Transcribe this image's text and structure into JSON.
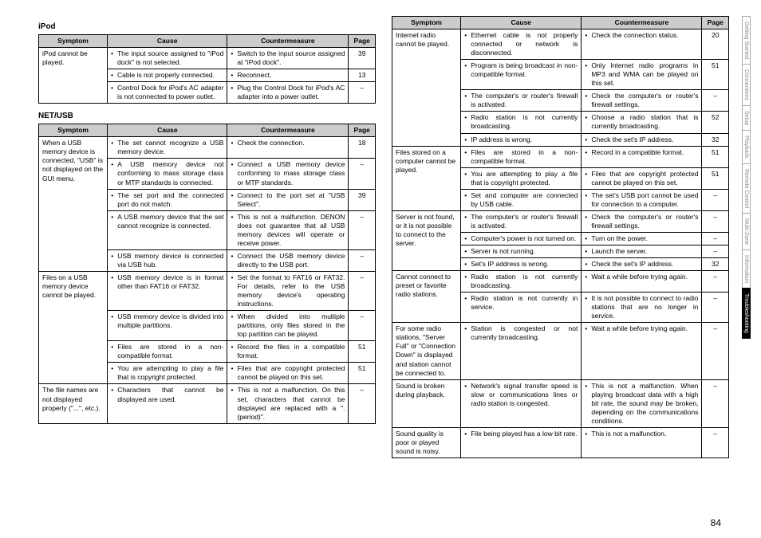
{
  "page_number": "84",
  "headers": {
    "symptom": "Symptom",
    "cause": "Cause",
    "cm": "Countermeasure",
    "page": "Page"
  },
  "nav": [
    "Getting Started",
    "Connections",
    "Setup",
    "Playback",
    "Remote Control",
    "Multi-Zone",
    "Information",
    "Troubleshooting"
  ],
  "nav_active": 7,
  "left": [
    {
      "title": "iPod",
      "rows": [
        {
          "symptom": "iPod cannot be played.",
          "items": [
            {
              "cause": "The input source assigned to \"iPod dock\" is not selected.",
              "cm": "Switch to the input source assigned at \"iPod dock\".",
              "page": "39"
            },
            {
              "cause": "Cable is not properly connected.",
              "cm": "Reconnect.",
              "page": "13"
            },
            {
              "cause": "Control Dock for iPod's AC adapter is not connected to power outlet.",
              "cm": "Plug the Control Dock for iPod's AC adapter into a power outlet.",
              "page": "–"
            }
          ]
        }
      ]
    },
    {
      "title": "NET/USB",
      "rows": [
        {
          "symptom": "When a USB memory device is connected, \"USB\" is not displayed on the GUI menu.",
          "items": [
            {
              "cause": "The set cannot recognize a USB memory device.",
              "cm": "Check the connection.",
              "page": "18"
            },
            {
              "cause": "A USB memory device not conforming to mass storage class or MTP standards is connected.",
              "cm": "Connect a USB memory device conforming to mass storage class or MTP standards.",
              "page": "–"
            },
            {
              "cause": "The set port and the connected port do not match.",
              "cm": "Connect to the port set at \"USB Select\".",
              "page": "39"
            },
            {
              "cause": "A USB memory device that the set cannot recognize is connected.",
              "cm": "This is not a malfunction. DENON does not guarantee that all USB memory devices will operate or receive power.",
              "page": "–"
            },
            {
              "cause": "USB memory device is connected via USB hub.",
              "cm": "Connect the USB memory device directly to the USB port.",
              "page": "–"
            }
          ]
        },
        {
          "symptom": "Files on a USB memory device cannot be played.",
          "items": [
            {
              "cause": "USB memory device is in format other than FAT16 or FAT32.",
              "cm": "Set the format to FAT16 or FAT32. For details, refer to the USB memory device's operating instructions.",
              "page": "–"
            },
            {
              "cause": "USB memory device is divided into multiple partitions.",
              "cm": "When divided into multiple partitions, only files stored in the top partition can be played.",
              "page": "–"
            },
            {
              "cause": "Files are stored in a non-compatible format.",
              "cm": "Record the files in a compatible format.",
              "page": "51"
            },
            {
              "cause": "You are attempting to play a file that is copyright protected.",
              "cm": "Files that are copyright protected cannot be played on this set.",
              "page": "51"
            }
          ]
        },
        {
          "symptom": "The file names are not displayed properly (\"...\", etc.).",
          "items": [
            {
              "cause": "Characters that cannot be displayed are used.",
              "cm": "This is not a malfunction. On this set, characters that cannot be displayed are replaced with a \". (period)\".",
              "page": "–"
            }
          ]
        }
      ]
    }
  ],
  "right": [
    {
      "title": "",
      "rows": [
        {
          "symptom": "Internet radio cannot be played.",
          "items": [
            {
              "cause": "Ethernet cable is not properly connected or network is disconnected.",
              "cm": "Check the connection status.",
              "page": "20"
            },
            {
              "cause": "Program is being broadcast in non-compatible format.",
              "cm": "Only Internet radio programs in MP3 and WMA can be played on this set.",
              "page": "51"
            },
            {
              "cause": "The computer's or router's firewall is activated.",
              "cm": "Check the computer's or router's firewall settings.",
              "page": "–"
            },
            {
              "cause": "Radio station is not currently broadcasting.",
              "cm": "Choose a radio station that is currently broadcasting.",
              "page": "52"
            },
            {
              "cause": "IP address is wrong.",
              "cm": "Check the set's IP address.",
              "page": "32"
            }
          ]
        },
        {
          "symptom": "Files stored on a computer cannot be played.",
          "items": [
            {
              "cause": "Files are stored in a non-compatible format.",
              "cm": "Record in a compatible format.",
              "page": "51"
            },
            {
              "cause": "You are attempting to play a file that is copyright protected.",
              "cm": "Files that are copyright protected cannot be played on this set.",
              "page": "51"
            },
            {
              "cause": "Set and computer are connected by USB cable.",
              "cm": "The set's USB port cannot be used for connection to a computer.",
              "page": "–"
            }
          ]
        },
        {
          "symptom": "Server is not found, or it is not possible to connect to the server.",
          "items": [
            {
              "cause": "The computer's or router's firewall is activated.",
              "cm": "Check the computer's or router's firewall settings.",
              "page": "–"
            },
            {
              "cause": "Computer's power is not turned on.",
              "cm": "Turn on the power.",
              "page": "–"
            },
            {
              "cause": "Server is not running.",
              "cm": "Launch the server.",
              "page": "–"
            },
            {
              "cause": "Set's IP address is wrong.",
              "cm": "Check the set's IP address.",
              "page": "32"
            }
          ]
        },
        {
          "symptom": "Cannot connect to preset or favorite radio stations.",
          "items": [
            {
              "cause": "Radio station is not currently broadcasting.",
              "cm": "Wait a while before trying again.",
              "page": "–"
            },
            {
              "cause": "Radio station is not currently in service.",
              "cm": "It is not possible to connect to radio stations that are no longer in service.",
              "page": "–"
            }
          ]
        },
        {
          "symptom": "For some radio stations, \"Server Full\" or \"Connection Down\" is displayed and station cannot be connected to.",
          "items": [
            {
              "cause": "Station is congested or not currently broadcasting.",
              "cm": "Wait a while before trying again.",
              "page": "–"
            }
          ]
        },
        {
          "symptom": "Sound is broken during playback.",
          "items": [
            {
              "cause": "Network's signal transfer speed is slow or communications lines or radio station is congested.",
              "cm": "This is not a malfunction. When playing broadcast data with a high bit rate, the sound may be broken, depending on the communications conditions.",
              "page": "–"
            }
          ]
        },
        {
          "symptom": "Sound quality is poor or played sound is noisy.",
          "items": [
            {
              "cause": "File being played has a low bit rate.",
              "cm": "This is not a malfunction.",
              "page": "–"
            }
          ]
        }
      ]
    }
  ]
}
